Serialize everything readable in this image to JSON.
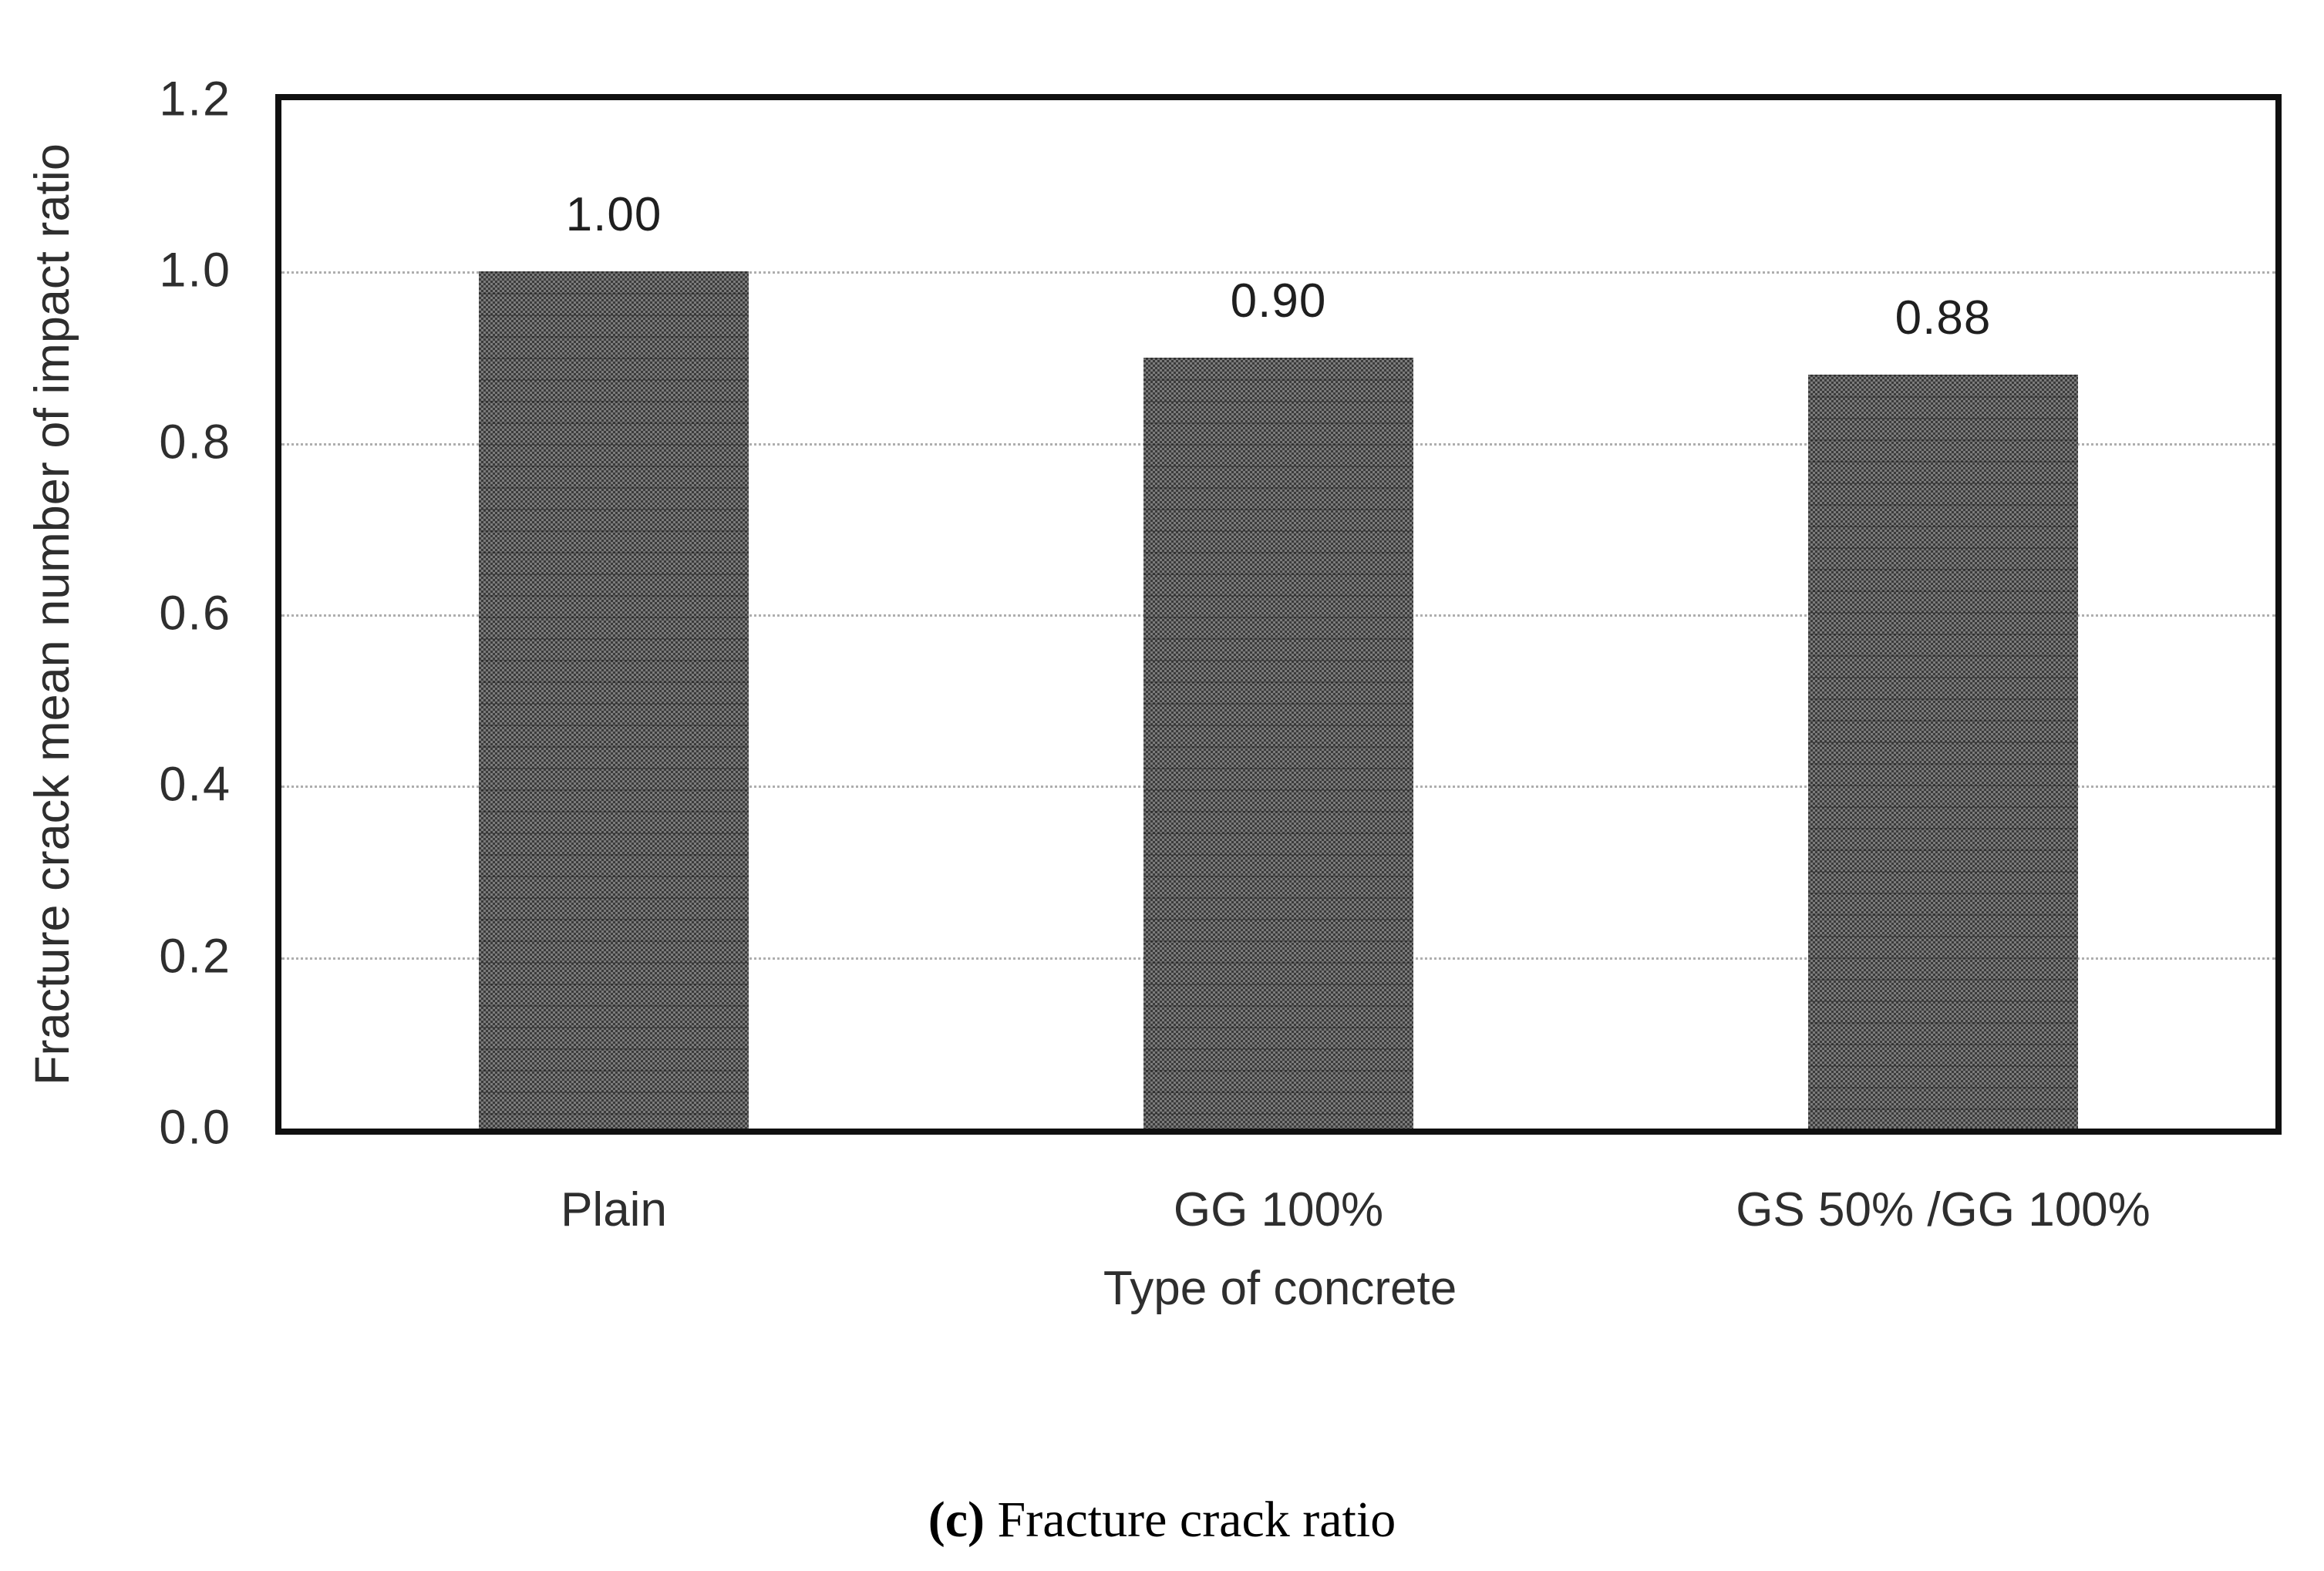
{
  "chart_data": {
    "type": "bar",
    "title": "",
    "xlabel": "Type of concrete",
    "ylabel": "Fracture crack mean number of impact ratio",
    "categories": [
      "Plain",
      "GG 100%",
      "GS 50% /GG 100%"
    ],
    "values": [
      1.0,
      0.9,
      0.88
    ],
    "value_labels": [
      "1.00",
      "0.90",
      "0.88"
    ],
    "ylim": [
      0.0,
      1.2
    ],
    "ytick_interval": 0.2,
    "ytick_labels": [
      "0.0",
      "0.2",
      "0.4",
      "0.6",
      "0.8",
      "1.0",
      "1.2"
    ],
    "grid": "horizontal-dotted",
    "legend": "none",
    "bar_color": "#595959",
    "frame_color": "#101010",
    "gridline_color": "#a6a6a6",
    "text_color": "#2e2e2e"
  },
  "caption": {
    "index": "(c)",
    "title": "Fracture crack ratio"
  }
}
